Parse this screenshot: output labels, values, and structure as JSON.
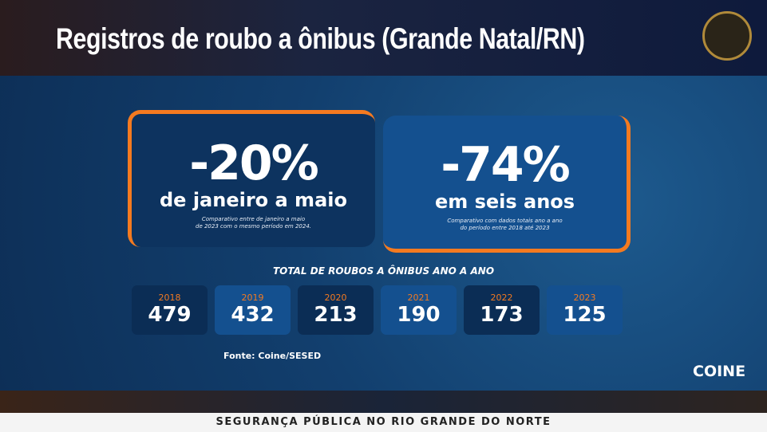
{
  "header": {
    "title": "Registros de roubo a ônibus (Grande Natal/RN)"
  },
  "cards": [
    {
      "value": "-20%",
      "label": "de janeiro a maio",
      "note": [
        "Comparativo entre de janeiro a maio",
        "de 2023 com o mesmo período em 2024."
      ]
    },
    {
      "value": "-74%",
      "label": "em seis anos",
      "note": [
        "Comparativo com dados totais ano a ano",
        "do período entre 2018 até 2023"
      ]
    }
  ],
  "yearly": {
    "title": "TOTAL DE ROUBOS A ÔNIBUS ANO A ANO",
    "items": [
      {
        "year": "2018",
        "value": 479
      },
      {
        "year": "2019",
        "value": 432
      },
      {
        "year": "2020",
        "value": 213
      },
      {
        "year": "2021",
        "value": 190
      },
      {
        "year": "2022",
        "value": 173
      },
      {
        "year": "2023",
        "value": 125
      }
    ]
  },
  "source": "Fonte: Coine/SESED",
  "logo": "COINE",
  "footer": "SEGURANÇA PÚBLICA NO RIO GRANDE DO NORTE"
}
